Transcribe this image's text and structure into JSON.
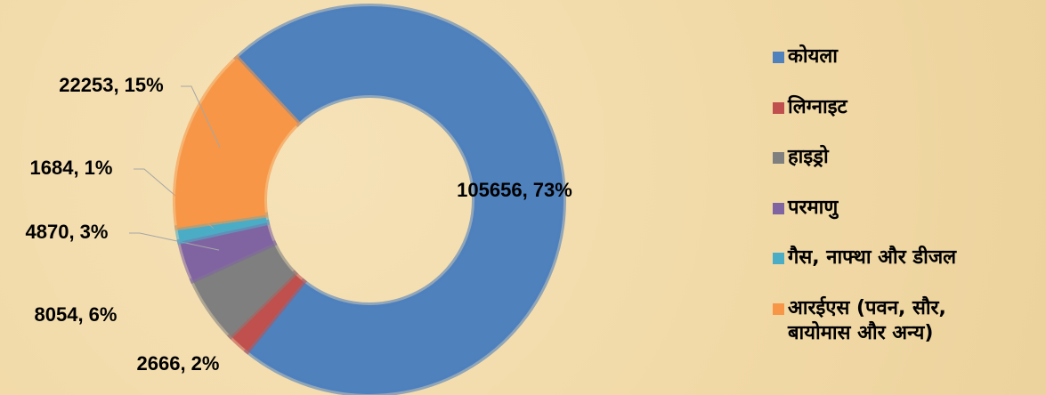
{
  "chart_data": {
    "type": "donut",
    "categories": [
      "कोयला",
      "लिग्नाइट",
      "हाइड्रो",
      "परमाणु",
      "गैस, नाफ्था और डीजल",
      "आरईएस (पवन, सौर, बायोमास और अन्य)"
    ],
    "values": [
      105656,
      2666,
      8054,
      4870,
      1684,
      22253
    ],
    "value_labels": [
      "105656, 73%",
      "2666, 2%",
      "8054, 6%",
      "4870, 3%",
      "1684, 1%",
      "22253, 15%"
    ],
    "colors": [
      "#4f81bd",
      "#c0504d",
      "#7f7f7f",
      "#8064a2",
      "#4bacc6",
      "#f79646"
    ],
    "legend": "right"
  }
}
